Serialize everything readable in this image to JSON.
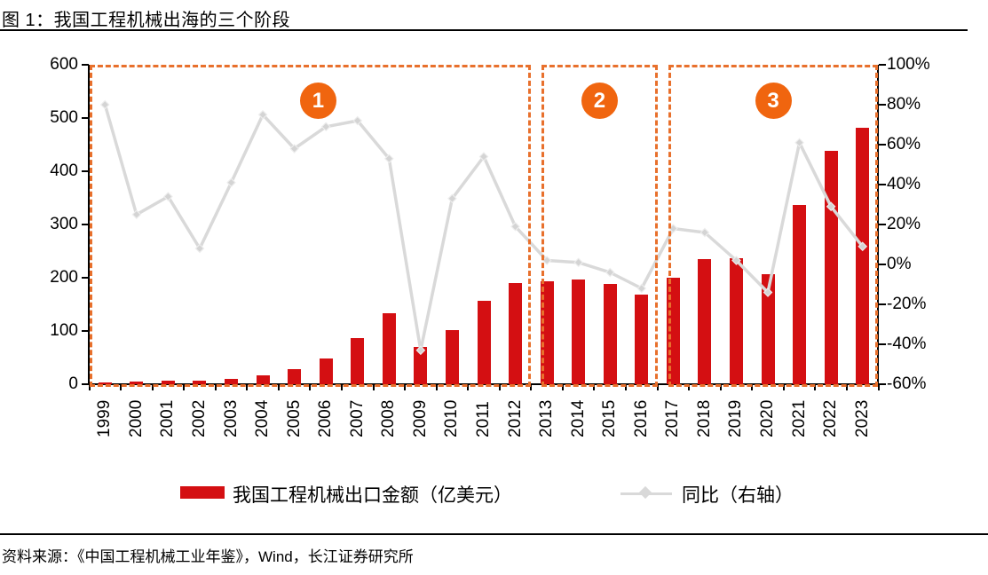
{
  "header": {
    "title": "图 1：我国工程机械出海的三个阶段"
  },
  "footer": {
    "source": "资料来源：《中国工程机械工业年鉴》，Wind，长江证券研究所"
  },
  "legend": {
    "bar_label": "我国工程机械出口金额（亿美元）",
    "line_label": "同比（右轴）"
  },
  "colors": {
    "bar_red": "#D40F12",
    "line_gray": "#D9D9D9",
    "marker_gray": "#D4D4D4",
    "marker_edge": "#EDEDED",
    "phase_orange": "#E8702C",
    "circle_orange": "#F0650F",
    "axis_black": "#000000"
  },
  "chart_data": {
    "type": "bar+line",
    "title": "图 1：我国工程机械出海的三个阶段",
    "categories": [
      1999,
      2000,
      2001,
      2002,
      2003,
      2004,
      2005,
      2006,
      2007,
      2008,
      2009,
      2010,
      2011,
      2012,
      2013,
      2014,
      2015,
      2016,
      2017,
      2018,
      2019,
      2020,
      2021,
      2022,
      2023
    ],
    "series": [
      {
        "name": "我国工程机械出口金额（亿美元）",
        "type": "bar",
        "axis": "left",
        "unit": "亿美元",
        "values": [
          4,
          5,
          6,
          7,
          10,
          17,
          28,
          48,
          86,
          133,
          70,
          101,
          157,
          190,
          194,
          196,
          189,
          168,
          200,
          235,
          237,
          207,
          337,
          439,
          482
        ]
      },
      {
        "name": "同比（右轴）",
        "type": "line",
        "axis": "right",
        "unit": "%",
        "values": [
          80,
          25,
          34,
          8,
          41,
          75,
          58,
          69,
          72,
          53,
          -43,
          33,
          54,
          19,
          2,
          1,
          -4,
          -12,
          18,
          16,
          2,
          -14,
          61,
          29,
          9
        ]
      }
    ],
    "left_axis": {
      "range": [
        0,
        600
      ],
      "ticks": [
        "600",
        "500",
        "400",
        "300",
        "200",
        "100",
        "0"
      ]
    },
    "right_axis": {
      "range": [
        -60,
        100
      ],
      "ticks": [
        "100%",
        "80%",
        "60%",
        "40%",
        "20%",
        "0%",
        "-20%",
        "-40%",
        "-60%"
      ]
    },
    "annotations": {
      "phases": [
        {
          "label": "1",
          "start_year": 1999,
          "end_year": 2012
        },
        {
          "label": "2",
          "start_year": 2013,
          "end_year": 2016
        },
        {
          "label": "3",
          "start_year": 2017,
          "end_year": 2023
        }
      ]
    },
    "legend_position": "bottom",
    "grid": false
  }
}
